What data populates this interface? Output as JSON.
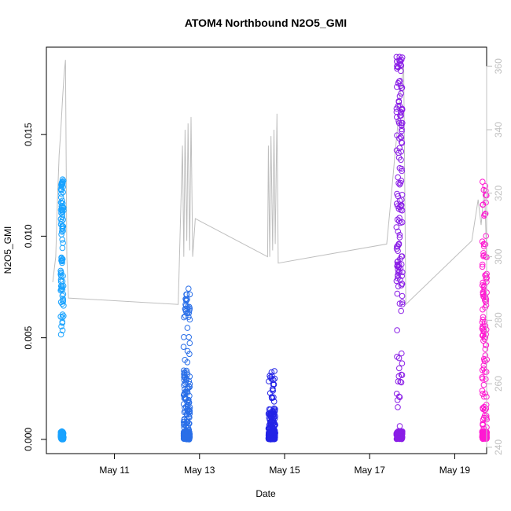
{
  "chart_data": {
    "type": "scatter",
    "title": "ATOM4 Northbound N2O5_GMI",
    "xlabel": "Date",
    "ylabel": "N2O5_GMI",
    "xlim_day": [
      9.4,
      19.75
    ],
    "ylim": [
      -0.0007,
      0.0193
    ],
    "y2lim": [
      238,
      366
    ],
    "x_ticks": [
      {
        "day": 11,
        "label": "May 11"
      },
      {
        "day": 13,
        "label": "May 13"
      },
      {
        "day": 15,
        "label": "May 15"
      },
      {
        "day": 17,
        "label": "May 17"
      },
      {
        "day": 19,
        "label": "May 19"
      }
    ],
    "y_ticks": [
      {
        "value": 0.0,
        "label": "0.000"
      },
      {
        "value": 0.005,
        "label": "0.005"
      },
      {
        "value": 0.01,
        "label": "0.010"
      },
      {
        "value": 0.015,
        "label": "0.015"
      }
    ],
    "y2_ticks": [
      {
        "value": 240,
        "label": "240"
      },
      {
        "value": 260,
        "label": "260"
      },
      {
        "value": 280,
        "label": "280"
      },
      {
        "value": 300,
        "label": "300"
      },
      {
        "value": 320,
        "label": "320"
      },
      {
        "value": 340,
        "label": "340"
      },
      {
        "value": 360,
        "label": "360"
      }
    ],
    "grid": false,
    "legend": "none",
    "line_color": "#bebebe",
    "flights": [
      {
        "day": 9.77,
        "color": "#1aa3ff",
        "n": 160,
        "max": 0.0128,
        "spread": 0.035,
        "high_frac": 0.55,
        "top_cluster": [
          0.011,
          0.0128
        ]
      },
      {
        "day": 12.7,
        "color": "#2a6fe8",
        "n": 230,
        "max": 0.0076,
        "spread": 0.075,
        "high_frac": 0.12,
        "top_cluster": [
          0.0062,
          0.007
        ]
      },
      {
        "day": 14.7,
        "color": "#2323e6",
        "n": 220,
        "max": 0.0034,
        "spread": 0.08,
        "high_frac": 0.05,
        "top_cluster": [
          0.0022,
          0.0034
        ]
      },
      {
        "day": 17.7,
        "color": "#8a1ee6",
        "n": 260,
        "max": 0.0189,
        "spread": 0.07,
        "high_frac": 0.45,
        "top_cluster": [
          0.0183,
          0.0189
        ]
      },
      {
        "day": 19.7,
        "color": "#ff19d2",
        "n": 200,
        "max": 0.0127,
        "spread": 0.055,
        "high_frac": 0.3,
        "top_cluster": [
          0.0068,
          0.008
        ]
      }
    ],
    "right_axis_trace": [
      [
        9.55,
        292
      ],
      [
        9.62,
        300
      ],
      [
        9.66,
        318
      ],
      [
        9.7,
        332
      ],
      [
        9.74,
        340
      ],
      [
        9.78,
        350
      ],
      [
        9.82,
        358
      ],
      [
        9.85,
        362
      ],
      [
        9.88,
        300
      ],
      [
        9.92,
        287
      ],
      [
        12.5,
        285
      ],
      [
        12.55,
        310
      ],
      [
        12.6,
        335
      ],
      [
        12.63,
        300
      ],
      [
        12.66,
        340
      ],
      [
        12.7,
        305
      ],
      [
        12.73,
        342
      ],
      [
        12.77,
        302
      ],
      [
        12.8,
        344
      ],
      [
        12.84,
        300
      ],
      [
        12.9,
        312
      ],
      [
        14.6,
        300
      ],
      [
        14.62,
        335
      ],
      [
        14.65,
        300
      ],
      [
        14.68,
        338
      ],
      [
        14.72,
        302
      ],
      [
        14.75,
        340
      ],
      [
        14.78,
        304
      ],
      [
        14.82,
        345
      ],
      [
        14.85,
        298
      ],
      [
        17.4,
        304
      ],
      [
        17.5,
        318
      ],
      [
        17.58,
        330
      ],
      [
        17.65,
        340
      ],
      [
        17.72,
        352
      ],
      [
        17.8,
        360
      ],
      [
        17.85,
        285
      ],
      [
        19.4,
        305
      ],
      [
        19.55,
        318
      ],
      [
        19.62,
        310
      ],
      [
        19.7,
        322
      ],
      [
        19.75,
        300
      ]
    ]
  }
}
